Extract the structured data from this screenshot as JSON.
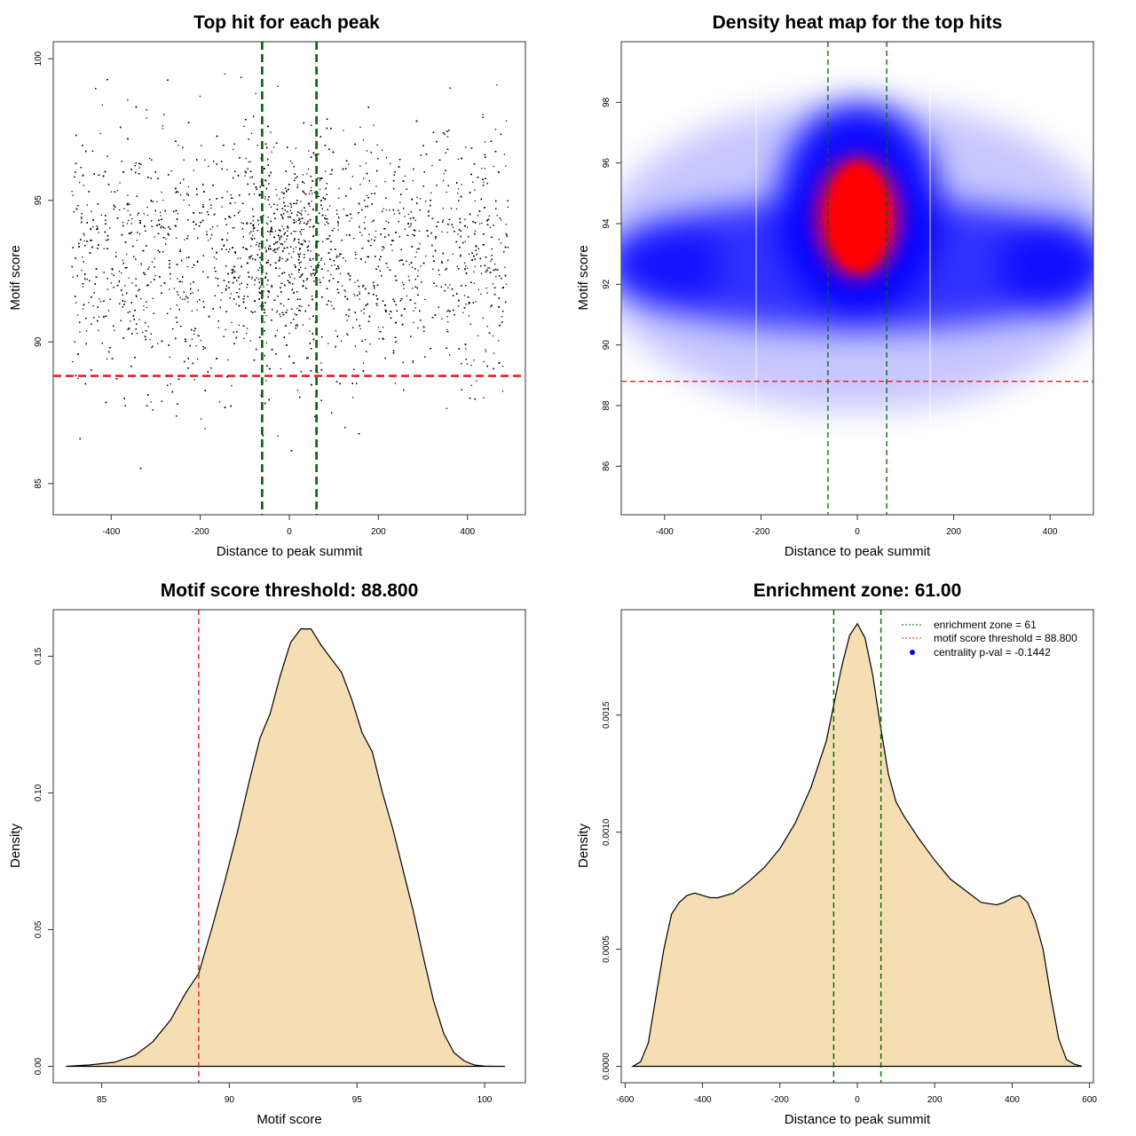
{
  "colors": {
    "density_fill": "#f5deb3",
    "threshold_line": "#dd2222",
    "zone_line": "#006400",
    "heat_low": "#0000ff",
    "heat_high": "#ff0000",
    "points": "#000000",
    "legend_dot": "#0000ff"
  },
  "chart_data": [
    {
      "type": "scatter",
      "title": "Top hit for each peak",
      "xlabel": "Distance to peak summit",
      "ylabel": "Motif score",
      "xlim": [
        -530,
        530
      ],
      "ylim": [
        83.9,
        100.6
      ],
      "xticks": [
        -400,
        -200,
        0,
        200,
        400
      ],
      "yticks": [
        85,
        90,
        95,
        100
      ],
      "grid": false,
      "points_description_range": {
        "x": [
          -490,
          490
        ],
        "y": [
          84.6,
          99.9
        ]
      },
      "hlines": [
        {
          "y": 88.8,
          "color": "red",
          "style": "dashed"
        }
      ],
      "vlines": [
        {
          "x": -61,
          "color": "darkgreen",
          "style": "dashed"
        },
        {
          "x": 61,
          "color": "darkgreen",
          "style": "dashed"
        }
      ]
    },
    {
      "type": "heatmap",
      "title": "Density heat map for the top hits",
      "xlabel": "Distance to peak summit",
      "ylabel": "Motif score",
      "xlim": [
        -490,
        490
      ],
      "ylim": [
        84.4,
        100.0
      ],
      "xticks": [
        -400,
        -200,
        0,
        200,
        400
      ],
      "yticks": [
        86,
        88,
        90,
        92,
        94,
        96,
        98
      ],
      "peak": {
        "x": 0,
        "y": 94.0
      },
      "hlines": [
        {
          "y": 88.8,
          "color": "red",
          "style": "dashed"
        }
      ],
      "vlines": [
        {
          "x": -61,
          "color": "darkgreen",
          "style": "dashed"
        },
        {
          "x": 61,
          "color": "darkgreen",
          "style": "dashed"
        }
      ]
    },
    {
      "type": "area",
      "title": "Motif score threshold: 88.800",
      "xlabel": "Motif score",
      "ylabel": "Density",
      "xlim": [
        83.1,
        101.6
      ],
      "ylim": [
        -0.006,
        0.167
      ],
      "xticks": [
        85,
        90,
        95,
        100
      ],
      "yticks": [
        0.0,
        0.05,
        0.1,
        0.15
      ],
      "ytick_labels": [
        "0.00",
        "0.05",
        "0.10",
        "0.15"
      ],
      "x": [
        83.6,
        84.5,
        85.5,
        86.3,
        87.0,
        87.7,
        88.3,
        88.8,
        89.3,
        89.8,
        90.3,
        90.8,
        91.2,
        91.6,
        92.0,
        92.4,
        92.8,
        93.2,
        93.6,
        94.0,
        94.4,
        94.8,
        95.2,
        95.6,
        96.0,
        96.4,
        96.8,
        97.2,
        97.6,
        98.0,
        98.4,
        98.8,
        99.2,
        99.6,
        100.0,
        100.4,
        100.8
      ],
      "y": [
        0.0,
        0.0005,
        0.0015,
        0.004,
        0.009,
        0.017,
        0.027,
        0.034,
        0.05,
        0.067,
        0.085,
        0.105,
        0.12,
        0.129,
        0.143,
        0.155,
        0.16,
        0.16,
        0.154,
        0.149,
        0.144,
        0.134,
        0.122,
        0.115,
        0.1,
        0.087,
        0.072,
        0.057,
        0.04,
        0.024,
        0.012,
        0.005,
        0.002,
        0.0005,
        0.0001,
        0.0,
        0.0
      ],
      "vlines": [
        {
          "x": 88.8,
          "color": "red",
          "style": "dashed"
        }
      ]
    },
    {
      "type": "area",
      "title": "Enrichment zone: 61.00",
      "xlabel": "Distance to peak summit",
      "ylabel": "Density",
      "xlim": [
        -610,
        610
      ],
      "ylim": [
        -7e-05,
        0.00195
      ],
      "xticks": [
        -600,
        -400,
        -200,
        0,
        200,
        400,
        600
      ],
      "yticks": [
        0.0,
        0.0005,
        0.001,
        0.0015
      ],
      "ytick_labels": [
        "0.0000",
        "0.0005",
        "0.0010",
        "0.0015"
      ],
      "x": [
        -580,
        -560,
        -540,
        -520,
        -500,
        -480,
        -460,
        -440,
        -420,
        -400,
        -380,
        -360,
        -320,
        -280,
        -240,
        -200,
        -160,
        -120,
        -80,
        -60,
        -40,
        -20,
        0,
        20,
        40,
        60,
        80,
        100,
        120,
        160,
        200,
        240,
        280,
        320,
        360,
        380,
        400,
        420,
        440,
        460,
        480,
        500,
        520,
        540,
        560,
        580
      ],
      "y": [
        0.0,
        2e-05,
        0.0001,
        0.0003,
        0.0005,
        0.00065,
        0.0007,
        0.00073,
        0.00074,
        0.00073,
        0.00072,
        0.00072,
        0.00074,
        0.00079,
        0.00085,
        0.00093,
        0.00104,
        0.00119,
        0.00139,
        0.00155,
        0.00171,
        0.00184,
        0.00189,
        0.00183,
        0.00167,
        0.00145,
        0.00125,
        0.00113,
        0.00107,
        0.00097,
        0.00088,
        0.0008,
        0.00075,
        0.0007,
        0.00069,
        0.0007,
        0.00072,
        0.00073,
        0.0007,
        0.00062,
        0.0005,
        0.0003,
        0.00012,
        3e-05,
        1e-05,
        0.0
      ],
      "vlines": [
        {
          "x": -61,
          "color": "darkgreen",
          "style": "dashed"
        },
        {
          "x": 61,
          "color": "darkgreen",
          "style": "dashed"
        }
      ],
      "legend": [
        {
          "label": "enrichment zone = 61",
          "kind": "dotted-line",
          "color": "darkgreen"
        },
        {
          "label": "motif score threshold = 88.800",
          "kind": "dotted-line",
          "color": "red"
        },
        {
          "label": "centrality p-val = -0.1442",
          "kind": "dot",
          "color": "blue"
        }
      ],
      "legend_placement": "top-right"
    }
  ]
}
